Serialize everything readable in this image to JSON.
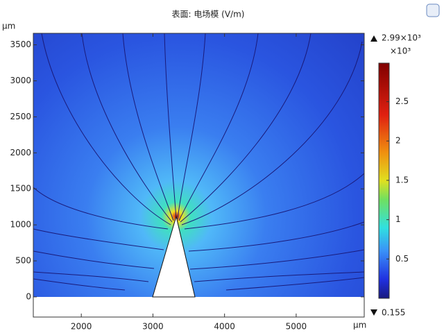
{
  "chart_data": {
    "type": "surface",
    "title": "表面: 电场模 (V/m)",
    "x_label": "µm",
    "y_label": "µm",
    "xlim": [
      1330,
      5950
    ],
    "xticks": [
      2000,
      3000,
      4000,
      5000
    ],
    "ylim": [
      -280,
      3660
    ],
    "yticks": [
      0,
      500,
      1000,
      1500,
      2000,
      2500,
      3000,
      3500
    ],
    "colorbar": {
      "exponent_label": "×10³",
      "max": {
        "value": 2.99,
        "label": "2.99×10³"
      },
      "min": {
        "value": 0.000155,
        "label": "0.155"
      },
      "ticks": [
        0.5,
        1,
        1.5,
        2,
        2.5
      ]
    }
  }
}
